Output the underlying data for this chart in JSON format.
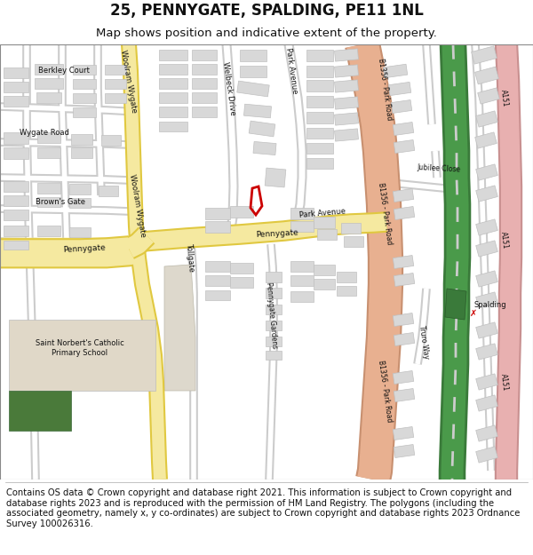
{
  "title": "25, PENNYGATE, SPALDING, PE11 1NL",
  "subtitle": "Map shows position and indicative extent of the property.",
  "footer": "Contains OS data © Crown copyright and database right 2021. This information is subject to Crown copyright and database rights 2023 and is reproduced with the permission of HM Land Registry. The polygons (including the associated geometry, namely x, y co-ordinates) are subject to Crown copyright and database rights 2023 Ordnance Survey 100026316.",
  "bg_color": "#ffffff",
  "map_bg": "#eeeae2",
  "road_yellow": "#f5e9a0",
  "road_yellow_border": "#e0c840",
  "road_orange": "#e8b090",
  "road_orange_border": "#c89070",
  "building_fill": "#d8d8d8",
  "building_stroke": "#c0c0c0",
  "green_dark": "#4a7a3a",
  "school_fill": "#e0d8c8",
  "plot_color": "#cc0000",
  "rail_green": "#3a7a3a",
  "pink_road": "#e8b0b0",
  "pink_road_border": "#c89090",
  "text_color": "#111111",
  "title_fontsize": 12,
  "subtitle_fontsize": 9.5,
  "footer_fontsize": 7.2
}
